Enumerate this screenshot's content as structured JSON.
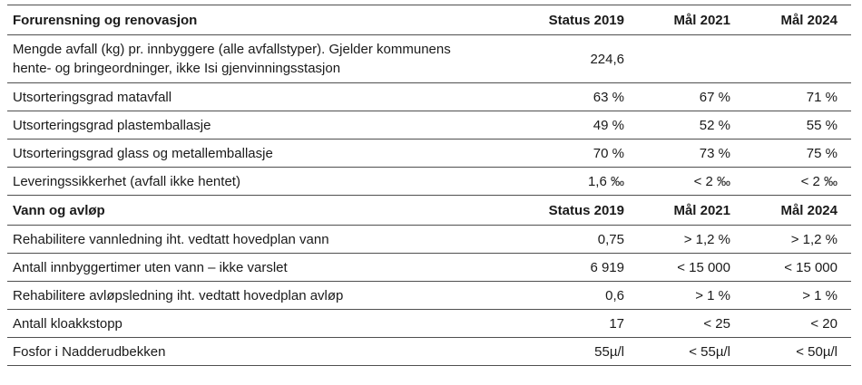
{
  "page": {
    "background": "#ffffff",
    "text_color": "#1a1a1a",
    "border_color": "#4f4f4f"
  },
  "table": {
    "sections": [
      {
        "title": "Forurensning og renovasjon",
        "col_headers": [
          "Status 2019",
          "Mål 2021",
          "Mål 2024"
        ],
        "rows": [
          {
            "label": "Mengde avfall (kg) pr. innbyggere (alle avfallstyper). Gjelder kommunens hente- og bringeordninger, ikke Isi gjenvinningsstasjon",
            "status_2019": "224,6",
            "mal_2021": "",
            "mal_2024": ""
          },
          {
            "label": "Utsorteringsgrad matavfall",
            "status_2019": "63 %",
            "mal_2021": "67 %",
            "mal_2024": "71 %"
          },
          {
            "label": "Utsorteringsgrad plastemballasje",
            "status_2019": "49 %",
            "mal_2021": "52 %",
            "mal_2024": "55 %"
          },
          {
            "label": "Utsorteringsgrad glass og metallemballasje",
            "status_2019": "70 %",
            "mal_2021": "73 %",
            "mal_2024": "75 %"
          },
          {
            "label": "Leveringssikkerhet (avfall ikke hentet)",
            "status_2019": "1,6 ‰",
            "mal_2021": "< 2 ‰",
            "mal_2024": "< 2 ‰"
          }
        ]
      },
      {
        "title": "Vann og avløp",
        "col_headers": [
          "Status 2019",
          "Mål 2021",
          "Mål 2024"
        ],
        "rows": [
          {
            "label": "Rehabilitere vannledning iht. vedtatt hovedplan vann",
            "status_2019": "0,75",
            "mal_2021": "> 1,2 %",
            "mal_2024": "> 1,2 %"
          },
          {
            "label": "Antall innbyggertimer uten vann – ikke varslet",
            "status_2019": "6 919",
            "mal_2021": "< 15 000",
            "mal_2024": "< 15 000"
          },
          {
            "label": "Rehabilitere avløpsledning iht. vedtatt hovedplan avløp",
            "status_2019": "0,6",
            "mal_2021": "> 1 %",
            "mal_2024": "> 1 %"
          },
          {
            "label": "Antall kloakkstopp",
            "status_2019": "17",
            "mal_2021": "< 25",
            "mal_2024": "< 20"
          },
          {
            "label": "Fosfor i Nadderudbekken",
            "status_2019": "55µ/l",
            "mal_2021": "< 55µ/l",
            "mal_2024": "< 50µ/l"
          }
        ]
      }
    ]
  }
}
